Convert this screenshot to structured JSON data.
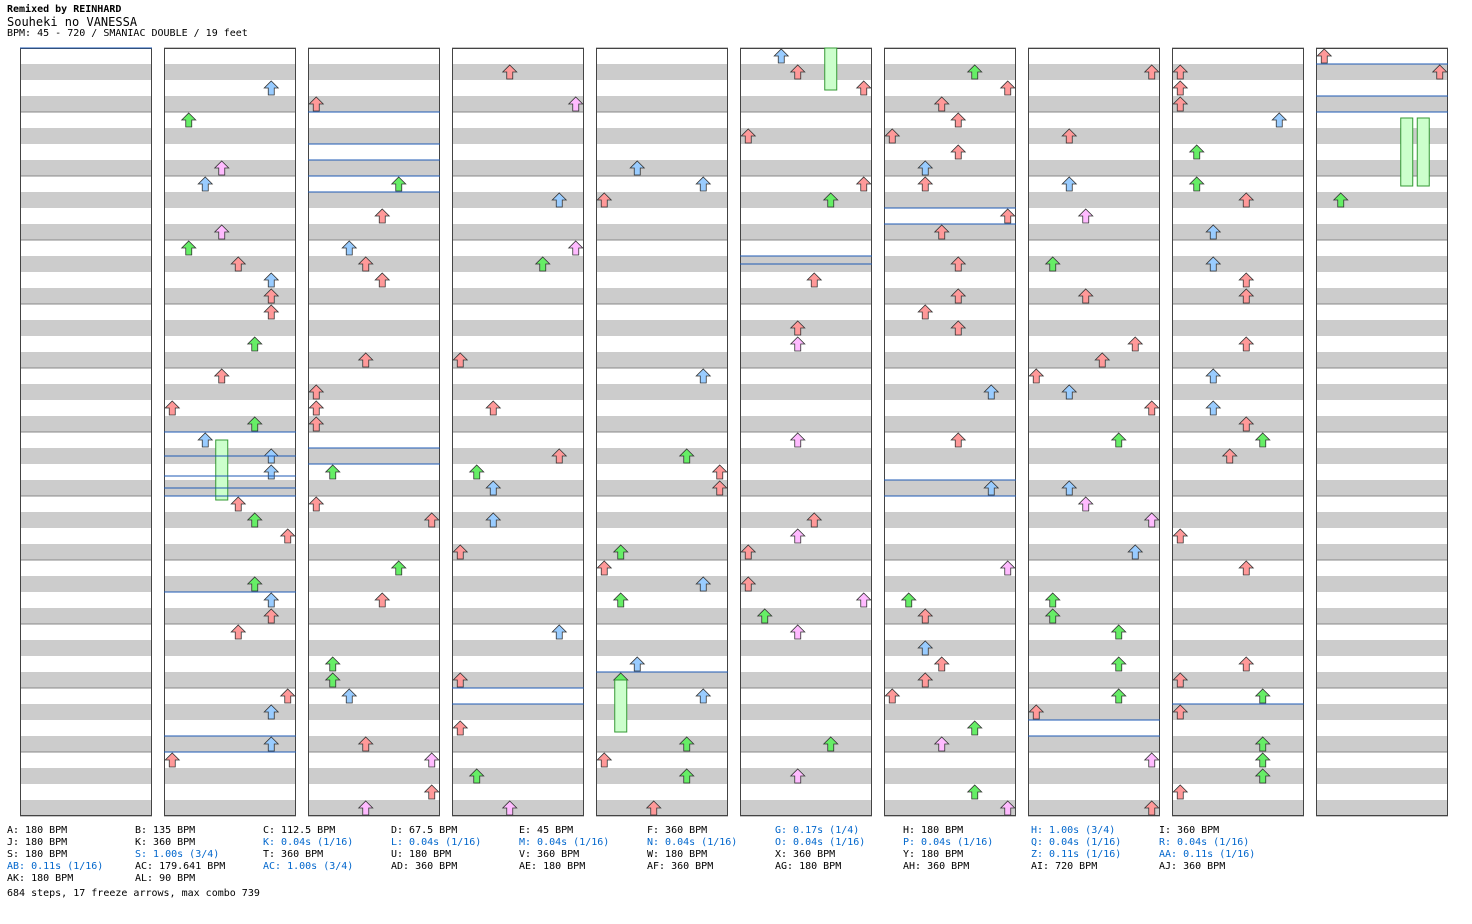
{
  "header": {
    "remix": "Remixed by REINHARD",
    "title": "Souheki no VANESSA",
    "subtitle": "BPM: 45 - 720 / SMANIAC DOUBLE / 19 feet"
  },
  "footer": {
    "summary": "684 steps, 17 freeze arrows, max combo 739"
  },
  "colors": {
    "band": "#cccccc",
    "border": "#444444",
    "bpm_line": "#1e5ab4",
    "note_left": "#ff9999",
    "note_down": "#66ee66",
    "note_up": "#99ccff",
    "note_right": "#ffbbff",
    "freeze": "#ccffcc",
    "stop_text": "#0066cc"
  },
  "legend": [
    {
      "text": "A: 180 BPM",
      "type": "bpm"
    },
    {
      "text": "B: 135 BPM",
      "type": "bpm"
    },
    {
      "text": "C: 112.5 BPM",
      "type": "bpm"
    },
    {
      "text": "D: 67.5 BPM",
      "type": "bpm"
    },
    {
      "text": "E: 45 BPM",
      "type": "bpm"
    },
    {
      "text": "F: 360 BPM",
      "type": "bpm"
    },
    {
      "text": "G: 0.17s (1/4)",
      "type": "stop"
    },
    {
      "text": "H: 180 BPM",
      "type": "bpm"
    },
    {
      "text": "H: 1.00s (3/4)",
      "type": "stop"
    },
    {
      "text": "I: 360 BPM",
      "type": "bpm"
    },
    {
      "text": "J: 180 BPM",
      "type": "bpm"
    },
    {
      "text": "K: 360 BPM",
      "type": "bpm"
    },
    {
      "text": "K: 0.04s (1/16)",
      "type": "stop"
    },
    {
      "text": "L: 0.04s (1/16)",
      "type": "stop"
    },
    {
      "text": "M: 0.04s (1/16)",
      "type": "stop"
    },
    {
      "text": "N: 0.04s (1/16)",
      "type": "stop"
    },
    {
      "text": "O: 0.04s (1/16)",
      "type": "stop"
    },
    {
      "text": "P: 0.04s (1/16)",
      "type": "stop"
    },
    {
      "text": "Q: 0.04s (1/16)",
      "type": "stop"
    },
    {
      "text": "R: 0.04s (1/16)",
      "type": "stop"
    },
    {
      "text": "S: 180 BPM",
      "type": "bpm"
    },
    {
      "text": "S: 1.00s (3/4)",
      "type": "stop"
    },
    {
      "text": "T: 360 BPM",
      "type": "bpm"
    },
    {
      "text": "U: 180 BPM",
      "type": "bpm"
    },
    {
      "text": "V: 360 BPM",
      "type": "bpm"
    },
    {
      "text": "W: 180 BPM",
      "type": "bpm"
    },
    {
      "text": "X: 360 BPM",
      "type": "bpm"
    },
    {
      "text": "Y: 180 BPM",
      "type": "bpm"
    },
    {
      "text": "Z: 0.11s (1/16)",
      "type": "stop"
    },
    {
      "text": "AA: 0.11s (1/16)",
      "type": "stop"
    },
    {
      "text": "AB: 0.11s (1/16)",
      "type": "stop"
    },
    {
      "text": "AC: 179.641 BPM",
      "type": "bpm"
    },
    {
      "text": "AC: 1.00s (3/4)",
      "type": "stop"
    },
    {
      "text": "AD: 360 BPM",
      "type": "bpm"
    },
    {
      "text": "AE: 180 BPM",
      "type": "bpm"
    },
    {
      "text": "AF: 360 BPM",
      "type": "bpm"
    },
    {
      "text": "AG: 180 BPM",
      "type": "bpm"
    },
    {
      "text": "AH: 360 BPM",
      "type": "bpm"
    },
    {
      "text": "AI: 720 BPM",
      "type": "bpm"
    },
    {
      "text": "AJ: 360 BPM",
      "type": "bpm"
    },
    {
      "text": "AK: 180 BPM",
      "type": "bpm"
    },
    {
      "text": "AL: 90 BPM",
      "type": "bpm"
    }
  ]
}
